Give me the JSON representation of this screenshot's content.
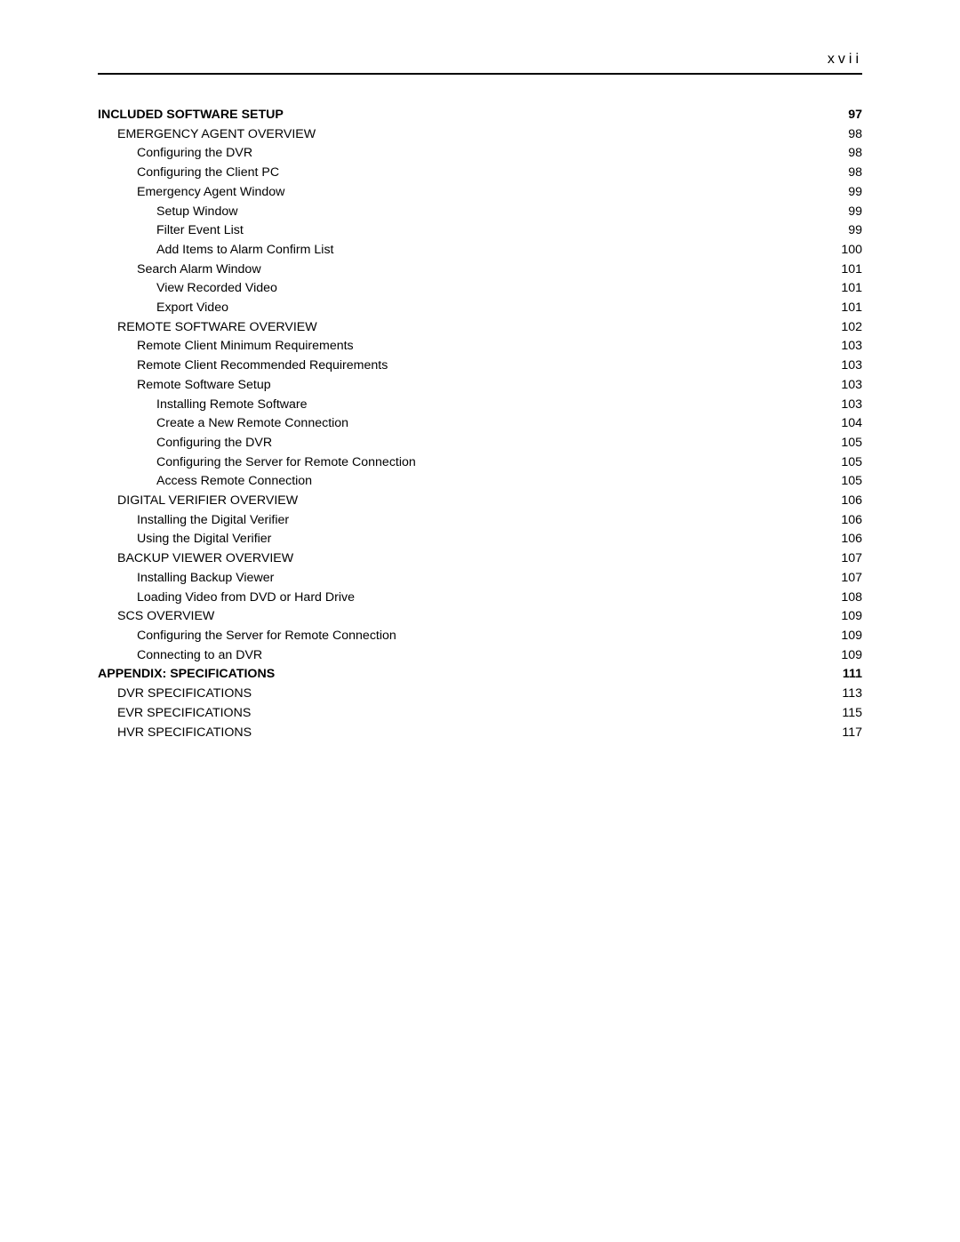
{
  "page_number": "xvii",
  "entries": [
    {
      "title": "INCLUDED SOFTWARE SETUP",
      "page": "97",
      "level": 0,
      "bold": true
    },
    {
      "title": "EMERGENCY AGENT OVERVIEW",
      "page": "98",
      "level": 1,
      "bold": false
    },
    {
      "title": "Configuring the DVR",
      "page": "98",
      "level": 2,
      "bold": false
    },
    {
      "title": "Configuring the Client PC",
      "page": "98",
      "level": 2,
      "bold": false
    },
    {
      "title": "Emergency Agent Window",
      "page": "99",
      "level": 2,
      "bold": false
    },
    {
      "title": "Setup Window",
      "page": "99",
      "level": 3,
      "bold": false
    },
    {
      "title": "Filter Event List",
      "page": "99",
      "level": 3,
      "bold": false
    },
    {
      "title": "Add Items to Alarm Confirm List",
      "page": "100",
      "level": 3,
      "bold": false
    },
    {
      "title": "Search Alarm Window",
      "page": "101",
      "level": 2,
      "bold": false
    },
    {
      "title": "View Recorded Video",
      "page": "101",
      "level": 3,
      "bold": false
    },
    {
      "title": "Export Video",
      "page": "101",
      "level": 3,
      "bold": false
    },
    {
      "title": "REMOTE SOFTWARE OVERVIEW",
      "page": "102",
      "level": 1,
      "bold": false
    },
    {
      "title": "Remote Client Minimum Requirements",
      "page": "103",
      "level": 2,
      "bold": false
    },
    {
      "title": "Remote Client Recommended Requirements",
      "page": "103",
      "level": 2,
      "bold": false
    },
    {
      "title": "Remote Software Setup",
      "page": "103",
      "level": 2,
      "bold": false
    },
    {
      "title": "Installing Remote Software",
      "page": "103",
      "level": 3,
      "bold": false
    },
    {
      "title": "Create a New Remote Connection",
      "page": "104",
      "level": 3,
      "bold": false
    },
    {
      "title": "Configuring the DVR",
      "page": "105",
      "level": 3,
      "bold": false
    },
    {
      "title": "Configuring the Server for Remote Connection",
      "page": "105",
      "level": 3,
      "bold": false
    },
    {
      "title": "Access Remote Connection",
      "page": "105",
      "level": 3,
      "bold": false
    },
    {
      "title": "DIGITAL VERIFIER OVERVIEW",
      "page": "106",
      "level": 1,
      "bold": false
    },
    {
      "title": "Installing the Digital Verifier",
      "page": "106",
      "level": 2,
      "bold": false
    },
    {
      "title": "Using the Digital Verifier",
      "page": "106",
      "level": 2,
      "bold": false
    },
    {
      "title": "BACKUP VIEWER OVERVIEW",
      "page": "107",
      "level": 1,
      "bold": false
    },
    {
      "title": "Installing Backup Viewer",
      "page": "107",
      "level": 2,
      "bold": false
    },
    {
      "title": "Loading Video from DVD or Hard Drive",
      "page": "108",
      "level": 2,
      "bold": false
    },
    {
      "title": "SCS OVERVIEW",
      "page": "109",
      "level": 1,
      "bold": false
    },
    {
      "title": "Configuring the Server for Remote Connection",
      "page": "109",
      "level": 2,
      "bold": false
    },
    {
      "title": "Connecting to an DVR",
      "page": "109",
      "level": 2,
      "bold": false
    },
    {
      "title": "APPENDIX: SPECIFICATIONS",
      "page": "111",
      "level": 0,
      "bold": true
    },
    {
      "title": "DVR SPECIFICATIONS",
      "page": "113",
      "level": 1,
      "bold": false
    },
    {
      "title": "EVR SPECIFICATIONS",
      "page": "115",
      "level": 1,
      "bold": false
    },
    {
      "title": "HVR SPECIFICATIONS",
      "page": "117",
      "level": 1,
      "bold": false
    }
  ]
}
